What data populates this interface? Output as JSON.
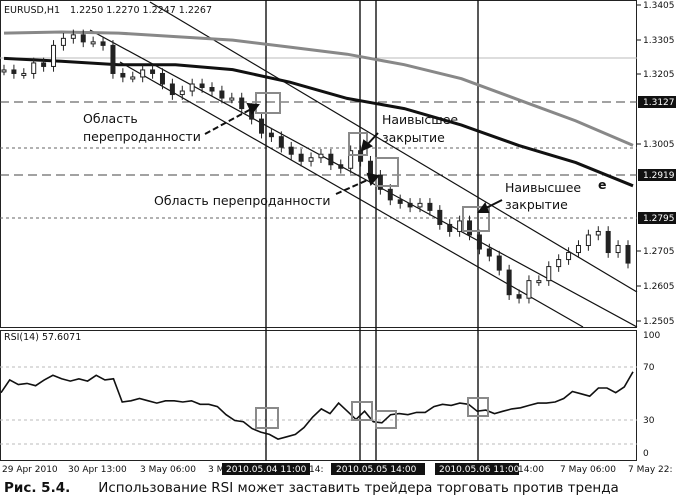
{
  "window": {
    "symbol_title": "EURUSD,H1",
    "ohlc": "1.2250 1.2270 1.2247 1.2267"
  },
  "price_axis_labels": [
    "1.3405",
    "1.3305",
    "1.3205",
    "1.3127",
    "1.3005",
    "1.2919",
    "1.2795",
    "1.2705",
    "1.2605",
    "1.2505"
  ],
  "price_highlight_labels": [
    "1.3127",
    "1.2919",
    "1.2795"
  ],
  "rsi": {
    "title": "RSI(14) 57.6071",
    "axis_labels": [
      "100",
      "70",
      "30",
      "0"
    ],
    "levels": [
      70,
      30
    ]
  },
  "time_axis_labels": [
    "29 Apr 2010",
    "30 Apr 13:00",
    "3 May 06:00",
    "3 M",
    "14:",
    "14:00",
    "7 May 06:00",
    "7 May 22:"
  ],
  "time_highlight_labels": [
    "2010.05.04 11:00",
    "2010.05.05 14:00",
    "2010.05.06 11:00"
  ],
  "annotations": {
    "oversold_1_line1": "Область",
    "oversold_1_line2": "перепроданности",
    "oversold_2": "Область перепроданности",
    "highest_close_1_line1": "Наивысшее",
    "highest_close_1_line2": "закрытие",
    "highest_close_2_line1": "Наивысшее",
    "highest_close_2_line2": "закрытие",
    "fragment": "е"
  },
  "caption": {
    "number": "Рис. 5.4.",
    "text": "Использование RSI может заставить трейдера торговать против тренда"
  },
  "colors": {
    "background": "#ffffff",
    "grid": "#c8c8c8",
    "candle": "#222222",
    "ma_slow": "#888888",
    "ma_fast": "#111111",
    "label_bg": "#111111",
    "label_fg": "#ffffff",
    "box": "#8a8a8a"
  },
  "chart_data": {
    "type": "line",
    "price_range": [
      1.245,
      1.3405
    ],
    "rsi_range": [
      0,
      100
    ],
    "rsi_levels": [
      70,
      30
    ],
    "price_series": [
      {
        "values": [
          1.322,
          1.321,
          1.321,
          1.324,
          1.323,
          1.329,
          1.331,
          1.332,
          1.33,
          1.33,
          1.329,
          1.321,
          1.32,
          1.32,
          1.322,
          1.321,
          1.318,
          1.315,
          1.316,
          1.318,
          1.317,
          1.316,
          1.314,
          1.314,
          1.311,
          1.308,
          1.304,
          1.303,
          1.3,
          1.298,
          1.296,
          1.297,
          1.298,
          1.295,
          1.294,
          1.299,
          1.296,
          1.292,
          1.288,
          1.285,
          1.284,
          1.283,
          1.284,
          1.282,
          1.278,
          1.276,
          1.279,
          1.275,
          1.271,
          1.269,
          1.265,
          1.258,
          1.257,
          1.262,
          1.262,
          1.266,
          1.268,
          1.27,
          1.272,
          1.275,
          1.276,
          1.27,
          1.272,
          1.267
        ]
      }
    ],
    "ma_series": [
      {
        "values": [
          1.3325,
          1.3328,
          1.3325,
          1.3315,
          1.3305,
          1.3285,
          1.3265,
          1.3235,
          1.3195,
          1.3135,
          1.3075,
          1.3005
        ]
      },
      {
        "values": [
          1.3253,
          1.3245,
          1.3235,
          1.3235,
          1.3221,
          1.3185,
          1.3139,
          1.311,
          1.3063,
          1.3005,
          1.2956,
          1.289
        ]
      }
    ],
    "rsi_series": [
      {
        "values": [
          52,
          63,
          59,
          60,
          58,
          63,
          67,
          64,
          62,
          64,
          62,
          67,
          63,
          64,
          44,
          45,
          47,
          45,
          43,
          45,
          45,
          44,
          45,
          42,
          42,
          40,
          33,
          28,
          27,
          21,
          18,
          16,
          12,
          14,
          16,
          22,
          31,
          38,
          34,
          43,
          36,
          29,
          36,
          27,
          26,
          33,
          34,
          33,
          35,
          35,
          40,
          42,
          41,
          43,
          42,
          36,
          37,
          34,
          36,
          38,
          39,
          41,
          43,
          43,
          44,
          47,
          53,
          51,
          49,
          56,
          56,
          52,
          57,
          70
        ]
      }
    ]
  }
}
